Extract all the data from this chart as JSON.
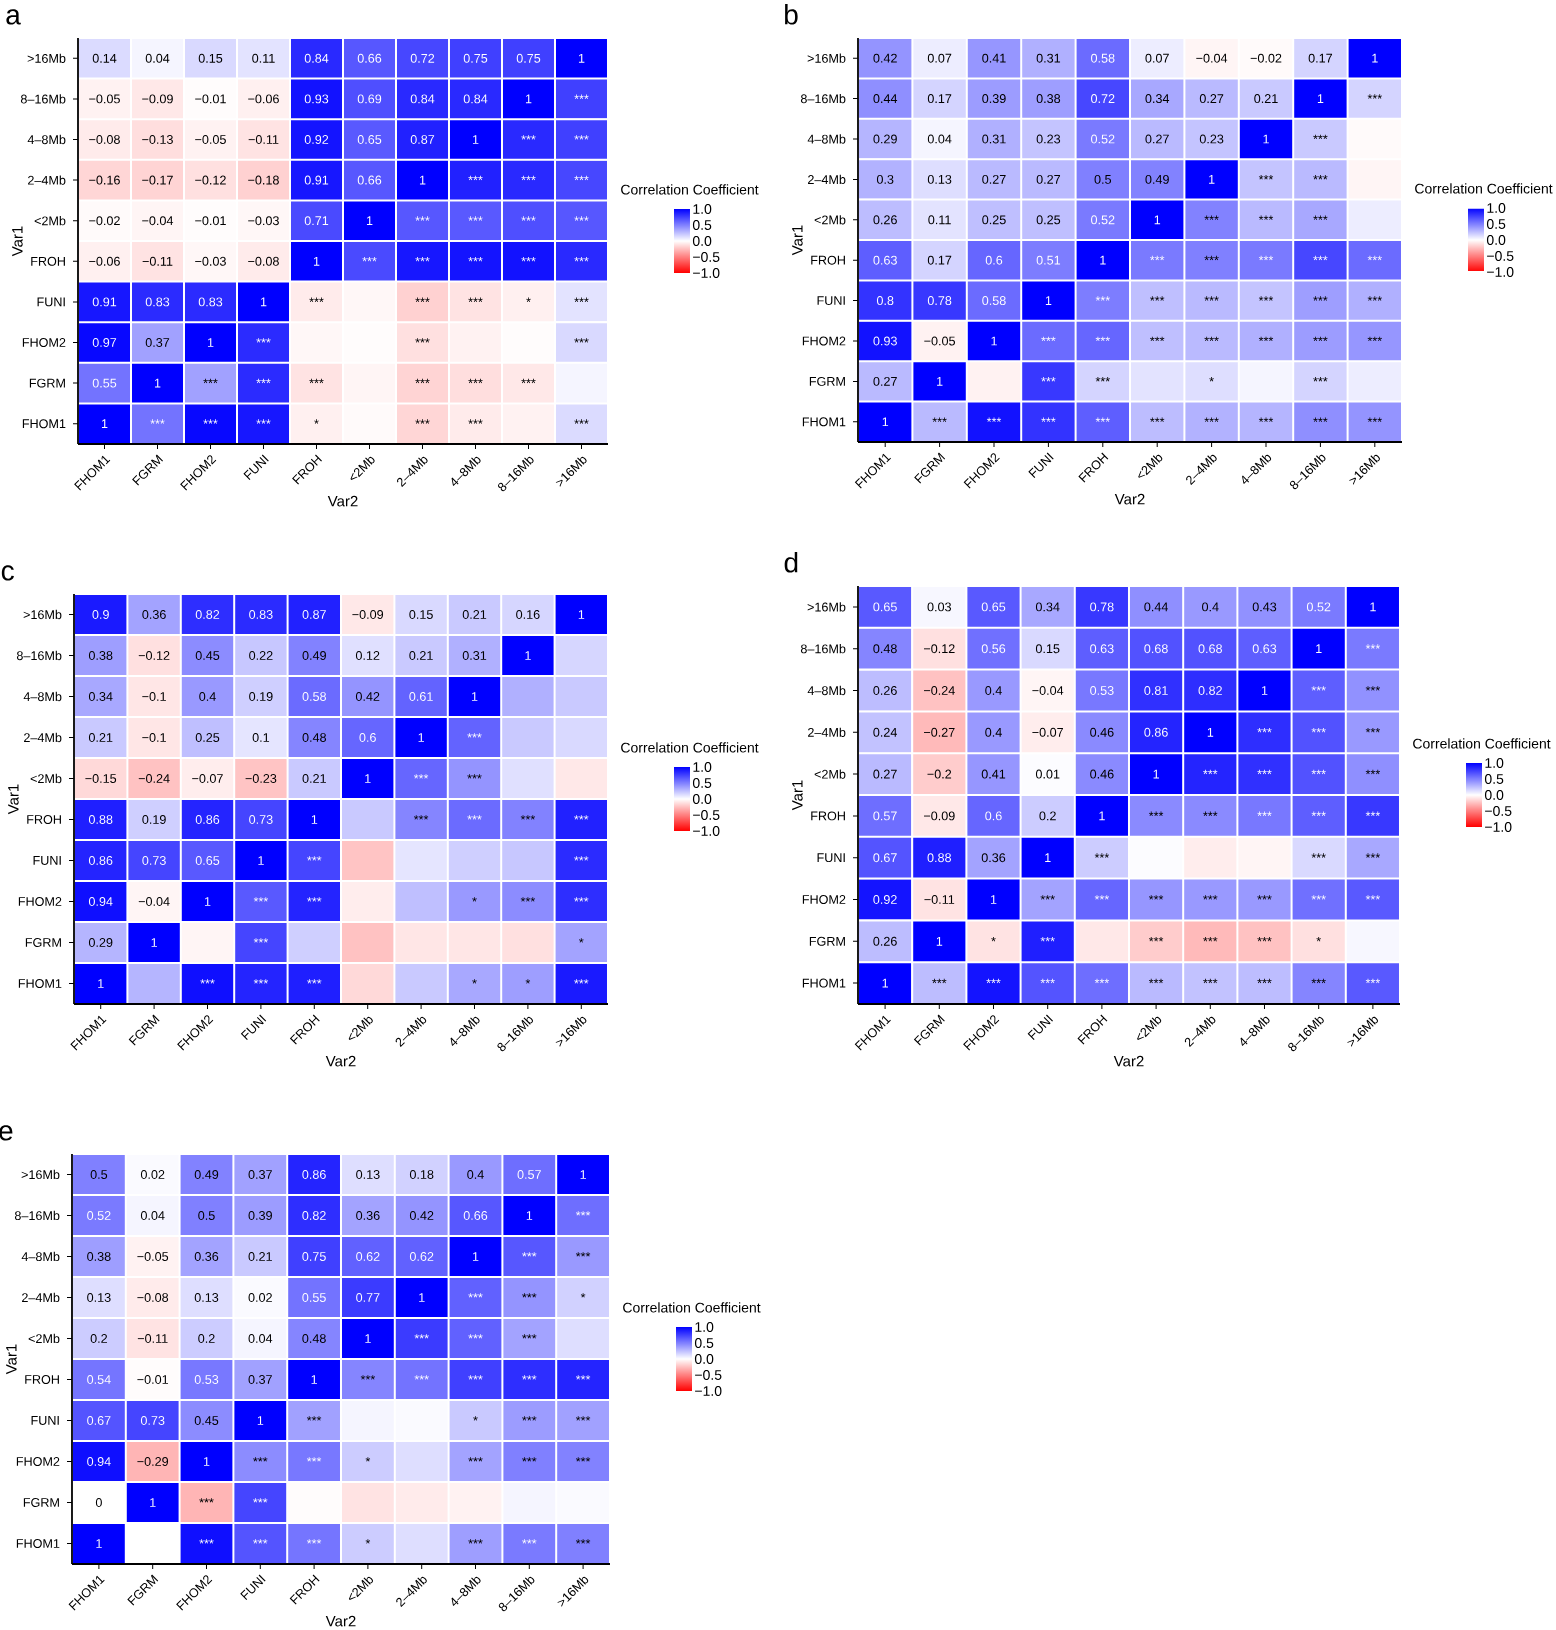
{
  "chart_data": [
    {
      "type": "heatmap",
      "title": "a",
      "xlabel": "Var2",
      "ylabel": "Var1",
      "clabel": "Correlation Coefficient",
      "categories": [
        "FHOM1",
        "FGRM",
        "FHOM2",
        "FUNI",
        "FROH",
        "<2Mb",
        "2–4Mb",
        "4–8Mb",
        "8–16Mb",
        ">16Mb"
      ],
      "y_categories": [
        ">16Mb",
        "8–16Mb",
        "4–8Mb",
        "2–4Mb",
        "<2Mb",
        "FROH",
        "FUNI",
        "FHOM2",
        "FGRM",
        "FHOM1"
      ],
      "clim": [
        -1,
        1
      ],
      "cticks": [
        {
          "value": -1,
          "label": "−1.0"
        },
        {
          "value": -0.5,
          "label": "−0.5"
        },
        {
          "value": 0,
          "label": "0.0"
        },
        {
          "value": 0.5,
          "label": "0.5"
        },
        {
          "value": 1,
          "label": "1.0"
        }
      ],
      "cells": [
        [
          0.14,
          0.04,
          0.15,
          0.11,
          0.84,
          0.66,
          0.72,
          0.75,
          0.75,
          1
        ],
        [
          -0.05,
          -0.09,
          -0.01,
          -0.06,
          0.93,
          0.69,
          0.84,
          0.84,
          1,
          0.75
        ],
        [
          -0.08,
          -0.13,
          -0.05,
          -0.11,
          0.92,
          0.65,
          0.87,
          1,
          0.84,
          0.75
        ],
        [
          -0.16,
          -0.17,
          -0.12,
          -0.18,
          0.91,
          0.66,
          1,
          0.87,
          0.84,
          0.72
        ],
        [
          -0.02,
          -0.04,
          -0.01,
          -0.03,
          0.71,
          1,
          0.66,
          0.65,
          0.69,
          0.66
        ],
        [
          -0.06,
          -0.11,
          -0.03,
          -0.08,
          1,
          0.71,
          0.91,
          0.92,
          0.93,
          0.84
        ],
        [
          0.91,
          0.83,
          0.83,
          1,
          -0.08,
          -0.03,
          -0.18,
          -0.11,
          -0.06,
          0.11
        ],
        [
          0.97,
          0.37,
          1,
          0.83,
          -0.03,
          -0.01,
          -0.12,
          -0.05,
          -0.01,
          0.15
        ],
        [
          0.55,
          1,
          0.37,
          0.83,
          -0.11,
          -0.04,
          -0.17,
          -0.13,
          -0.09,
          0.04
        ],
        [
          1,
          0.55,
          0.97,
          0.91,
          -0.06,
          -0.02,
          -0.16,
          -0.08,
          -0.05,
          0.14
        ]
      ],
      "cell_labels": [
        [
          "0.14",
          "0.04",
          "0.15",
          "0.11",
          "0.84",
          "0.66",
          "0.72",
          "0.75",
          "0.75",
          "1"
        ],
        [
          "−0.05",
          "−0.09",
          "−0.01",
          "−0.06",
          "0.93",
          "0.69",
          "0.84",
          "0.84",
          "1",
          "***"
        ],
        [
          "−0.08",
          "−0.13",
          "−0.05",
          "−0.11",
          "0.92",
          "0.65",
          "0.87",
          "1",
          "***",
          "***"
        ],
        [
          "−0.16",
          "−0.17",
          "−0.12",
          "−0.18",
          "0.91",
          "0.66",
          "1",
          "***",
          "***",
          "***"
        ],
        [
          "−0.02",
          "−0.04",
          "−0.01",
          "−0.03",
          "0.71",
          "1",
          "***",
          "***",
          "***",
          "***"
        ],
        [
          "−0.06",
          "−0.11",
          "−0.03",
          "−0.08",
          "1",
          "***",
          "***",
          "***",
          "***",
          "***"
        ],
        [
          "0.91",
          "0.83",
          "0.83",
          "1",
          "***",
          null,
          "***",
          "***",
          "*",
          "***"
        ],
        [
          "0.97",
          "0.37",
          "1",
          "***",
          null,
          null,
          "***",
          null,
          null,
          "***"
        ],
        [
          "0.55",
          "1",
          "***",
          "***",
          "***",
          null,
          "***",
          "***",
          "***",
          null
        ],
        [
          "1",
          "***",
          "***",
          "***",
          "*",
          null,
          "***",
          "***",
          null,
          "***"
        ]
      ]
    },
    {
      "type": "heatmap",
      "title": "b",
      "xlabel": "Var2",
      "ylabel": "Var1",
      "clabel": "Correlation Coefficient",
      "categories": [
        "FHOM1",
        "FGRM",
        "FHOM2",
        "FUNI",
        "FROH",
        "<2Mb",
        "2–4Mb",
        "4–8Mb",
        "8–16Mb",
        ">16Mb"
      ],
      "y_categories": [
        ">16Mb",
        "8–16Mb",
        "4–8Mb",
        "2–4Mb",
        "<2Mb",
        "FROH",
        "FUNI",
        "FHOM2",
        "FGRM",
        "FHOM1"
      ],
      "clim": [
        -1,
        1
      ],
      "cticks": [
        {
          "value": -1,
          "label": "−1.0"
        },
        {
          "value": -0.5,
          "label": "−0.5"
        },
        {
          "value": 0,
          "label": "0.0"
        },
        {
          "value": 0.5,
          "label": "0.5"
        },
        {
          "value": 1,
          "label": "1.0"
        }
      ],
      "cells": [
        [
          0.42,
          0.07,
          0.41,
          0.31,
          0.58,
          0.07,
          -0.04,
          -0.02,
          0.17,
          1
        ],
        [
          0.44,
          0.17,
          0.39,
          0.38,
          0.72,
          0.34,
          0.27,
          0.21,
          1,
          0.17
        ],
        [
          0.29,
          0.04,
          0.31,
          0.23,
          0.52,
          0.27,
          0.23,
          1,
          0.21,
          -0.02
        ],
        [
          0.3,
          0.13,
          0.27,
          0.27,
          0.5,
          0.49,
          1,
          0.23,
          0.27,
          -0.04
        ],
        [
          0.26,
          0.11,
          0.25,
          0.25,
          0.52,
          1,
          0.49,
          0.27,
          0.34,
          0.07
        ],
        [
          0.63,
          0.17,
          0.6,
          0.51,
          1,
          0.52,
          0.5,
          0.52,
          0.72,
          0.58
        ],
        [
          0.8,
          0.78,
          0.58,
          1,
          0.51,
          0.25,
          0.27,
          0.23,
          0.38,
          0.31
        ],
        [
          0.93,
          -0.05,
          1,
          0.58,
          0.6,
          0.25,
          0.27,
          0.31,
          0.39,
          0.41
        ],
        [
          0.27,
          1,
          -0.05,
          0.78,
          0.17,
          0.11,
          0.13,
          0.04,
          0.17,
          0.07
        ],
        [
          1,
          0.27,
          0.93,
          0.8,
          0.63,
          0.26,
          0.3,
          0.29,
          0.44,
          0.42
        ]
      ],
      "cell_labels": [
        [
          "0.42",
          "0.07",
          "0.41",
          "0.31",
          "0.58",
          "0.07",
          "−0.04",
          "−0.02",
          "0.17",
          "1"
        ],
        [
          "0.44",
          "0.17",
          "0.39",
          "0.38",
          "0.72",
          "0.34",
          "0.27",
          "0.21",
          "1",
          "***"
        ],
        [
          "0.29",
          "0.04",
          "0.31",
          "0.23",
          "0.52",
          "0.27",
          "0.23",
          "1",
          "***",
          null
        ],
        [
          "0.3",
          "0.13",
          "0.27",
          "0.27",
          "0.5",
          "0.49",
          "1",
          "***",
          "***",
          null
        ],
        [
          "0.26",
          "0.11",
          "0.25",
          "0.25",
          "0.52",
          "1",
          "***",
          "***",
          "***",
          null
        ],
        [
          "0.63",
          "0.17",
          "0.6",
          "0.51",
          "1",
          "***",
          "***",
          "***",
          "***",
          "***"
        ],
        [
          "0.8",
          "0.78",
          "0.58",
          "1",
          "***",
          "***",
          "***",
          "***",
          "***",
          "***"
        ],
        [
          "0.93",
          "−0.05",
          "1",
          "***",
          "***",
          "***",
          "***",
          "***",
          "***",
          "***"
        ],
        [
          "0.27",
          "1",
          null,
          "***",
          "***",
          null,
          "*",
          null,
          "***",
          null
        ],
        [
          "1",
          "***",
          "***",
          "***",
          "***",
          "***",
          "***",
          "***",
          "***",
          "***"
        ]
      ]
    },
    {
      "type": "heatmap",
      "title": "c",
      "xlabel": "Var2",
      "ylabel": "Var1",
      "clabel": "Correlation Coefficient",
      "categories": [
        "FHOM1",
        "FGRM",
        "FHOM2",
        "FUNI",
        "FROH",
        "<2Mb",
        "2–4Mb",
        "4–8Mb",
        "8–16Mb",
        ">16Mb"
      ],
      "y_categories": [
        ">16Mb",
        "8–16Mb",
        "4–8Mb",
        "2–4Mb",
        "<2Mb",
        "FROH",
        "FUNI",
        "FHOM2",
        "FGRM",
        "FHOM1"
      ],
      "clim": [
        -1,
        1
      ],
      "cticks": [
        {
          "value": -1,
          "label": "−1.0"
        },
        {
          "value": -0.5,
          "label": "−0.5"
        },
        {
          "value": 0,
          "label": "0.0"
        },
        {
          "value": 0.5,
          "label": "0.5"
        },
        {
          "value": 1,
          "label": "1.0"
        }
      ],
      "cells": [
        [
          0.9,
          0.36,
          0.82,
          0.83,
          0.87,
          -0.09,
          0.15,
          0.21,
          0.16,
          1
        ],
        [
          0.38,
          -0.12,
          0.45,
          0.22,
          0.49,
          0.12,
          0.21,
          0.31,
          1,
          0.16
        ],
        [
          0.34,
          -0.1,
          0.4,
          0.19,
          0.58,
          0.42,
          0.61,
          1,
          0.31,
          0.21
        ],
        [
          0.21,
          -0.1,
          0.25,
          0.1,
          0.48,
          0.6,
          1,
          0.61,
          0.21,
          0.15
        ],
        [
          -0.15,
          -0.24,
          -0.07,
          -0.23,
          0.21,
          1,
          0.6,
          0.42,
          0.12,
          -0.09
        ],
        [
          0.88,
          0.19,
          0.86,
          0.73,
          1,
          0.21,
          0.48,
          0.58,
          0.49,
          0.87
        ],
        [
          0.86,
          0.73,
          0.65,
          1,
          0.73,
          -0.23,
          0.1,
          0.19,
          0.22,
          0.83
        ],
        [
          0.94,
          -0.04,
          1,
          0.65,
          0.86,
          -0.07,
          0.25,
          0.4,
          0.45,
          0.82
        ],
        [
          0.29,
          1,
          -0.04,
          0.73,
          0.19,
          -0.24,
          -0.1,
          -0.1,
          -0.12,
          0.36
        ],
        [
          1,
          0.29,
          0.94,
          0.86,
          0.88,
          -0.15,
          0.21,
          0.34,
          0.38,
          0.9
        ]
      ],
      "cell_labels": [
        [
          "0.9",
          "0.36",
          "0.82",
          "0.83",
          "0.87",
          "−0.09",
          "0.15",
          "0.21",
          "0.16",
          "1"
        ],
        [
          "0.38",
          "−0.12",
          "0.45",
          "0.22",
          "0.49",
          "0.12",
          "0.21",
          "0.31",
          "1",
          null
        ],
        [
          "0.34",
          "−0.1",
          "0.4",
          "0.19",
          "0.58",
          "0.42",
          "0.61",
          "1",
          null,
          null
        ],
        [
          "0.21",
          "−0.1",
          "0.25",
          "0.1",
          "0.48",
          "0.6",
          "1",
          "***",
          null,
          null
        ],
        [
          "−0.15",
          "−0.24",
          "−0.07",
          "−0.23",
          "0.21",
          "1",
          "***",
          "***",
          null,
          null
        ],
        [
          "0.88",
          "0.19",
          "0.86",
          "0.73",
          "1",
          null,
          "***",
          "***",
          "***",
          "***"
        ],
        [
          "0.86",
          "0.73",
          "0.65",
          "1",
          "***",
          null,
          null,
          null,
          null,
          "***"
        ],
        [
          "0.94",
          "−0.04",
          "1",
          "***",
          "***",
          null,
          null,
          "*",
          "***",
          "***"
        ],
        [
          "0.29",
          "1",
          null,
          "***",
          null,
          null,
          null,
          null,
          null,
          "*"
        ],
        [
          "1",
          null,
          "***",
          "***",
          "***",
          null,
          null,
          "*",
          "*",
          "***"
        ]
      ]
    },
    {
      "type": "heatmap",
      "title": "d",
      "xlabel": "Var2",
      "ylabel": "Var1",
      "clabel": "Correlation Coefficient",
      "categories": [
        "FHOM1",
        "FGRM",
        "FHOM2",
        "FUNI",
        "FROH",
        "<2Mb",
        "2–4Mb",
        "4–8Mb",
        "8–16Mb",
        ">16Mb"
      ],
      "y_categories": [
        ">16Mb",
        "8–16Mb",
        "4–8Mb",
        "2–4Mb",
        "<2Mb",
        "FROH",
        "FUNI",
        "FHOM2",
        "FGRM",
        "FHOM1"
      ],
      "clim": [
        -1,
        1
      ],
      "cticks": [
        {
          "value": -1,
          "label": "−1.0"
        },
        {
          "value": -0.5,
          "label": "−0.5"
        },
        {
          "value": 0,
          "label": "0.0"
        },
        {
          "value": 0.5,
          "label": "0.5"
        },
        {
          "value": 1,
          "label": "1.0"
        }
      ],
      "cells": [
        [
          0.65,
          0.03,
          0.65,
          0.34,
          0.78,
          0.44,
          0.4,
          0.43,
          0.52,
          1
        ],
        [
          0.48,
          -0.12,
          0.56,
          0.15,
          0.63,
          0.68,
          0.68,
          0.63,
          1,
          0.52
        ],
        [
          0.26,
          -0.24,
          0.4,
          -0.04,
          0.53,
          0.81,
          0.82,
          1,
          0.63,
          0.43
        ],
        [
          0.24,
          -0.27,
          0.4,
          -0.07,
          0.46,
          0.86,
          1,
          0.82,
          0.68,
          0.4
        ],
        [
          0.27,
          -0.2,
          0.41,
          0.01,
          0.46,
          1,
          0.86,
          0.81,
          0.68,
          0.44
        ],
        [
          0.57,
          -0.09,
          0.6,
          0.2,
          1,
          0.46,
          0.46,
          0.53,
          0.63,
          0.78
        ],
        [
          0.67,
          0.88,
          0.36,
          1,
          0.2,
          0.01,
          -0.07,
          -0.04,
          0.15,
          0.34
        ],
        [
          0.92,
          -0.11,
          1,
          0.36,
          0.6,
          0.41,
          0.4,
          0.4,
          0.56,
          0.65
        ],
        [
          0.26,
          1,
          -0.11,
          0.88,
          -0.09,
          -0.2,
          -0.27,
          -0.24,
          -0.12,
          0.03
        ],
        [
          1,
          0.26,
          0.92,
          0.67,
          0.57,
          0.27,
          0.24,
          0.26,
          0.48,
          0.65
        ]
      ],
      "cell_labels": [
        [
          "0.65",
          "0.03",
          "0.65",
          "0.34",
          "0.78",
          "0.44",
          "0.4",
          "0.43",
          "0.52",
          "1"
        ],
        [
          "0.48",
          "−0.12",
          "0.56",
          "0.15",
          "0.63",
          "0.68",
          "0.68",
          "0.63",
          "1",
          "***"
        ],
        [
          "0.26",
          "−0.24",
          "0.4",
          "−0.04",
          "0.53",
          "0.81",
          "0.82",
          "1",
          "***",
          "***"
        ],
        [
          "0.24",
          "−0.27",
          "0.4",
          "−0.07",
          "0.46",
          "0.86",
          "1",
          "***",
          "***",
          "***"
        ],
        [
          "0.27",
          "−0.2",
          "0.41",
          "0.01",
          "0.46",
          "1",
          "***",
          "***",
          "***",
          "***"
        ],
        [
          "0.57",
          "−0.09",
          "0.6",
          "0.2",
          "1",
          "***",
          "***",
          "***",
          "***",
          "***"
        ],
        [
          "0.67",
          "0.88",
          "0.36",
          "1",
          "***",
          null,
          null,
          null,
          "***",
          "***"
        ],
        [
          "0.92",
          "−0.11",
          "1",
          "***",
          "***",
          "***",
          "***",
          "***",
          "***",
          "***"
        ],
        [
          "0.26",
          "1",
          "*",
          "***",
          null,
          "***",
          "***",
          "***",
          "*",
          null
        ],
        [
          "1",
          "***",
          "***",
          "***",
          "***",
          "***",
          "***",
          "***",
          "***",
          "***"
        ]
      ]
    },
    {
      "type": "heatmap",
      "title": "e",
      "xlabel": "Var2",
      "ylabel": "Var1",
      "clabel": "Correlation Coefficient",
      "categories": [
        "FHOM1",
        "FGRM",
        "FHOM2",
        "FUNI",
        "FROH",
        "<2Mb",
        "2–4Mb",
        "4–8Mb",
        "8–16Mb",
        ">16Mb"
      ],
      "y_categories": [
        ">16Mb",
        "8–16Mb",
        "4–8Mb",
        "2–4Mb",
        "<2Mb",
        "FROH",
        "FUNI",
        "FHOM2",
        "FGRM",
        "FHOM1"
      ],
      "clim": [
        -1,
        1
      ],
      "cticks": [
        {
          "value": -1,
          "label": "−1.0"
        },
        {
          "value": -0.5,
          "label": "−0.5"
        },
        {
          "value": 0,
          "label": "0.0"
        },
        {
          "value": 0.5,
          "label": "0.5"
        },
        {
          "value": 1,
          "label": "1.0"
        }
      ],
      "cells": [
        [
          0.5,
          0.02,
          0.49,
          0.37,
          0.86,
          0.13,
          0.18,
          0.4,
          0.57,
          1
        ],
        [
          0.52,
          0.04,
          0.5,
          0.39,
          0.82,
          0.36,
          0.42,
          0.66,
          1,
          0.57
        ],
        [
          0.38,
          -0.05,
          0.36,
          0.21,
          0.75,
          0.62,
          0.62,
          1,
          0.66,
          0.4
        ],
        [
          0.13,
          -0.08,
          0.13,
          0.02,
          0.55,
          0.77,
          1,
          0.62,
          0.42,
          0.18
        ],
        [
          0.2,
          -0.11,
          0.2,
          0.04,
          0.48,
          1,
          0.77,
          0.62,
          0.36,
          0.13
        ],
        [
          0.54,
          -0.01,
          0.53,
          0.37,
          1,
          0.48,
          0.55,
          0.75,
          0.82,
          0.86
        ],
        [
          0.67,
          0.73,
          0.45,
          1,
          0.37,
          0.04,
          0.02,
          0.21,
          0.39,
          0.37
        ],
        [
          0.94,
          -0.29,
          1,
          0.45,
          0.53,
          0.2,
          0.13,
          0.36,
          0.5,
          0.49
        ],
        [
          0,
          1,
          -0.29,
          0.73,
          -0.01,
          -0.11,
          -0.08,
          -0.05,
          0.04,
          0.02
        ],
        [
          1,
          0,
          0.94,
          0.67,
          0.54,
          0.2,
          0.13,
          0.38,
          0.52,
          0.5
        ]
      ],
      "cell_labels": [
        [
          "0.5",
          "0.02",
          "0.49",
          "0.37",
          "0.86",
          "0.13",
          "0.18",
          "0.4",
          "0.57",
          "1"
        ],
        [
          "0.52",
          "0.04",
          "0.5",
          "0.39",
          "0.82",
          "0.36",
          "0.42",
          "0.66",
          "1",
          "***"
        ],
        [
          "0.38",
          "−0.05",
          "0.36",
          "0.21",
          "0.75",
          "0.62",
          "0.62",
          "1",
          "***",
          "***"
        ],
        [
          "0.13",
          "−0.08",
          "0.13",
          "0.02",
          "0.55",
          "0.77",
          "1",
          "***",
          "***",
          "*"
        ],
        [
          "0.2",
          "−0.11",
          "0.2",
          "0.04",
          "0.48",
          "1",
          "***",
          "***",
          "***",
          null
        ],
        [
          "0.54",
          "−0.01",
          "0.53",
          "0.37",
          "1",
          "***",
          "***",
          "***",
          "***",
          "***"
        ],
        [
          "0.67",
          "0.73",
          "0.45",
          "1",
          "***",
          null,
          null,
          "*",
          "***",
          "***"
        ],
        [
          "0.94",
          "−0.29",
          "1",
          "***",
          "***",
          "*",
          null,
          "***",
          "***",
          "***"
        ],
        [
          "0",
          "1",
          "***",
          "***",
          null,
          null,
          null,
          null,
          null,
          null
        ],
        [
          "1",
          null,
          "***",
          "***",
          "***",
          "*",
          null,
          "***",
          "***",
          "***"
        ]
      ]
    }
  ]
}
